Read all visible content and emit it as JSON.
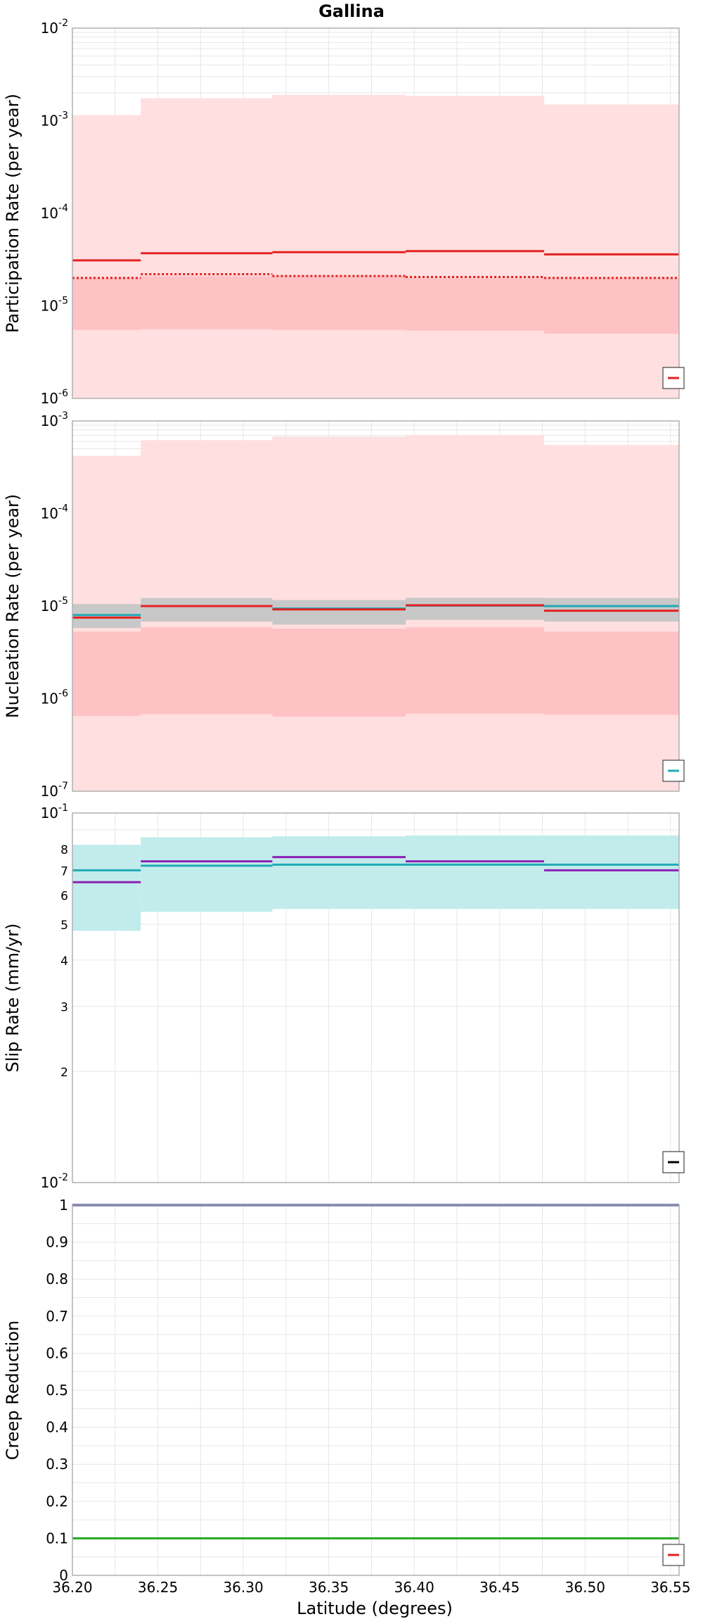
{
  "figure": {
    "title": "Gallina",
    "xlabel": "Latitude (degrees)",
    "x_ticks": [
      "36.20",
      "36.25",
      "36.30",
      "36.35",
      "36.40",
      "36.45",
      "36.50",
      "36.55"
    ]
  },
  "colors": {
    "red": "#e32222",
    "red_band_outer": "#ffdfe0",
    "red_band_inner": "#ffc2c4",
    "gray_band": "#c8c8c8",
    "teal": "#22aab4",
    "teal_band": "#c2ecec",
    "purple": "#8b22b4",
    "navy": "#1a237e",
    "green": "#22aa22",
    "axis": "#b0b0b0",
    "grid": "#e6e6e6"
  },
  "chart_data": [
    {
      "type": "line",
      "panel": "participation",
      "title": "Gallina",
      "xlabel": "",
      "ylabel": "Participation Rate (per year)",
      "xlim": [
        36.2,
        36.555
      ],
      "ylim": [
        1e-06,
        0.01
      ],
      "yscale": "log",
      "y_tick_labels": [
        "10^-2",
        "10^-3",
        "10^-4",
        "10^-5",
        "10^-6"
      ],
      "grid": true,
      "legend_placement": "bottom-right",
      "bins_x": [
        36.2,
        36.24,
        36.317,
        36.395,
        36.476,
        36.555
      ],
      "bands": [
        {
          "color_key": "red_band_outer",
          "lower": [
            1e-06,
            1e-06,
            1e-06,
            1e-06,
            1e-06
          ],
          "upper": [
            0.00115,
            0.00175,
            0.0019,
            0.00185,
            0.0015
          ]
        },
        {
          "color_key": "red_band_inner",
          "lower": [
            5.5e-06,
            5.6e-06,
            5.5e-06,
            5.4e-06,
            5e-06
          ],
          "upper": [
            2e-05,
            2.1e-05,
            2.1e-05,
            2e-05,
            2e-05
          ]
        }
      ],
      "series": [
        {
          "color_key": "red",
          "style": "solid",
          "values": [
            3.1e-05,
            3.7e-05,
            3.8e-05,
            3.9e-05,
            3.6e-05
          ]
        },
        {
          "color_key": "red",
          "style": "dotted",
          "values": [
            2e-05,
            2.2e-05,
            2.1e-05,
            2.05e-05,
            2e-05
          ]
        }
      ]
    },
    {
      "type": "line",
      "panel": "nucleation",
      "xlabel": "",
      "ylabel": "Nucleation Rate (per year)",
      "xlim": [
        36.2,
        36.555
      ],
      "ylim": [
        1e-07,
        0.001
      ],
      "yscale": "log",
      "y_tick_labels": [
        "10^-3",
        "10^-4",
        "10^-5",
        "10^-6",
        "10^-7"
      ],
      "grid": true,
      "legend_placement": "bottom-right",
      "bins_x": [
        36.2,
        36.24,
        36.317,
        36.395,
        36.476,
        36.555
      ],
      "bands": [
        {
          "color_key": "red_band_outer",
          "lower": [
            1e-07,
            1e-07,
            1e-07,
            1e-07,
            1e-07
          ],
          "upper": [
            0.00042,
            0.00062,
            0.00068,
            0.0007,
            0.00055
          ]
        },
        {
          "color_key": "red_band_inner",
          "lower": [
            6.5e-07,
            6.8e-07,
            6.4e-07,
            6.9e-07,
            6.7e-07
          ],
          "upper": [
            5.3e-06,
            5.9e-06,
            5.7e-06,
            5.9e-06,
            5.3e-06
          ]
        },
        {
          "color_key": "gray_band",
          "lower": [
            5.8e-06,
            6.8e-06,
            6.3e-06,
            7.1e-06,
            6.8e-06
          ],
          "upper": [
            1.05e-05,
            1.22e-05,
            1.16e-05,
            1.23e-05,
            1.22e-05
          ]
        }
      ],
      "series": [
        {
          "color_key": "teal",
          "style": "solid",
          "values": [
            8e-06,
            1e-05,
            9.4e-06,
            1.01e-05,
            1e-05
          ]
        },
        {
          "color_key": "red",
          "style": "solid",
          "values": [
            7.5e-06,
            1e-05,
            9.2e-06,
            1.02e-05,
            8.9e-06
          ]
        }
      ]
    },
    {
      "type": "line",
      "panel": "slip",
      "xlabel": "",
      "ylabel": "Slip Rate (mm/yr)",
      "xlim": [
        36.2,
        36.555
      ],
      "ylim": [
        1,
        10
      ],
      "yscale": "log",
      "y_tick_labels": [
        "10^-1",
        "8",
        "7",
        "6",
        "5",
        "4",
        "3",
        "2",
        "10^-2"
      ],
      "grid": true,
      "legend_placement": "bottom-right",
      "bins_x": [
        36.2,
        36.24,
        36.317,
        36.395,
        36.476,
        36.555
      ],
      "bands": [
        {
          "color_key": "teal_band",
          "lower": [
            4.8,
            5.4,
            5.5,
            5.5,
            5.5
          ],
          "upper": [
            8.2,
            8.6,
            8.65,
            8.7,
            8.7
          ]
        }
      ],
      "series": [
        {
          "color_key": "purple",
          "style": "solid",
          "values": [
            6.5,
            7.4,
            7.6,
            7.4,
            7.0
          ]
        },
        {
          "color_key": "teal",
          "style": "solid",
          "values": [
            7.0,
            7.2,
            7.25,
            7.25,
            7.25
          ]
        }
      ]
    },
    {
      "type": "line",
      "panel": "creep",
      "xlabel": "Latitude (degrees)",
      "ylabel": "Creep Reduction",
      "xlim": [
        36.2,
        36.555
      ],
      "ylim": [
        0,
        1
      ],
      "yscale": "linear",
      "y_tick_labels": [
        "0",
        "0.1",
        "0.2",
        "0.3",
        "0.4",
        "0.5",
        "0.6",
        "0.7",
        "0.8",
        "0.9",
        "1"
      ],
      "grid": true,
      "legend_placement": "bottom-right",
      "bins_x": [
        36.2,
        36.555
      ],
      "bands": [],
      "series": [
        {
          "color_key": "navy",
          "style": "solid",
          "values": [
            1.0
          ]
        },
        {
          "color_key": "green",
          "style": "solid",
          "values": [
            0.1
          ]
        }
      ]
    }
  ],
  "legends": [
    {
      "color_key": "red"
    },
    {
      "color_key": "teal"
    },
    {
      "color_key": "black"
    },
    {
      "color_key": "red"
    }
  ]
}
